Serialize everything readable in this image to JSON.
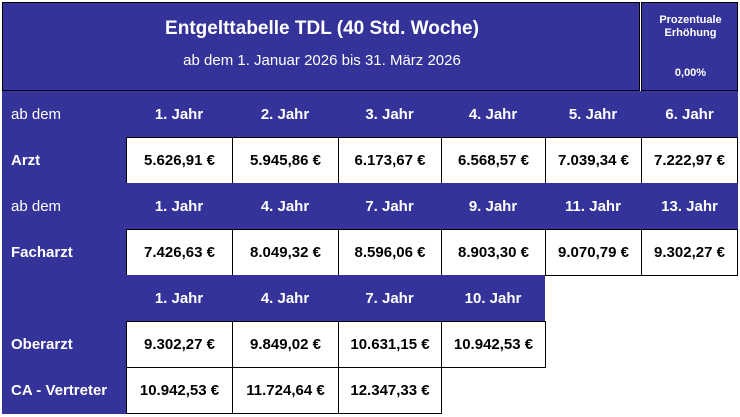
{
  "header": {
    "title": "Entgelttabelle TDL (40 Std. Woche)",
    "subtitle": "ab dem 1. Januar 2026 bis 31. März 2026",
    "pct_label": "Prozentuale\nErhöhung",
    "pct_value": "0,00%"
  },
  "colors": {
    "accent": "#333399",
    "cell_bg": "#ffffff",
    "border": "#000000"
  },
  "arzt": {
    "header_label": "ab dem",
    "years": [
      "1. Jahr",
      "2. Jahr",
      "3. Jahr",
      "4. Jahr",
      "5. Jahr",
      "6. Jahr"
    ],
    "label": "Arzt",
    "values": [
      "5.626,91 €",
      "5.945,86 €",
      "6.173,67 €",
      "6.568,57 €",
      "7.039,34 €",
      "7.222,97 €"
    ]
  },
  "facharzt": {
    "header_label": "ab dem",
    "years": [
      "1. Jahr",
      "4. Jahr",
      "7. Jahr",
      "9. Jahr",
      "11. Jahr",
      "13. Jahr"
    ],
    "label": "Facharzt",
    "values": [
      "7.426,63 €",
      "8.049,32 €",
      "8.596,06 €",
      "8.903,30 €",
      "9.070,79 €",
      "9.302,27 €"
    ]
  },
  "oberarzt": {
    "years": [
      "1. Jahr",
      "4. Jahr",
      "7. Jahr",
      "10. Jahr"
    ],
    "label": "Oberarzt",
    "values": [
      "9.302,27 €",
      "9.849,02 €",
      "10.631,15 €",
      "10.942,53 €"
    ]
  },
  "ca_vertreter": {
    "label": "CA - Vertreter",
    "values": [
      "10.942,53 €",
      "11.724,64 €",
      "12.347,33 €"
    ]
  }
}
